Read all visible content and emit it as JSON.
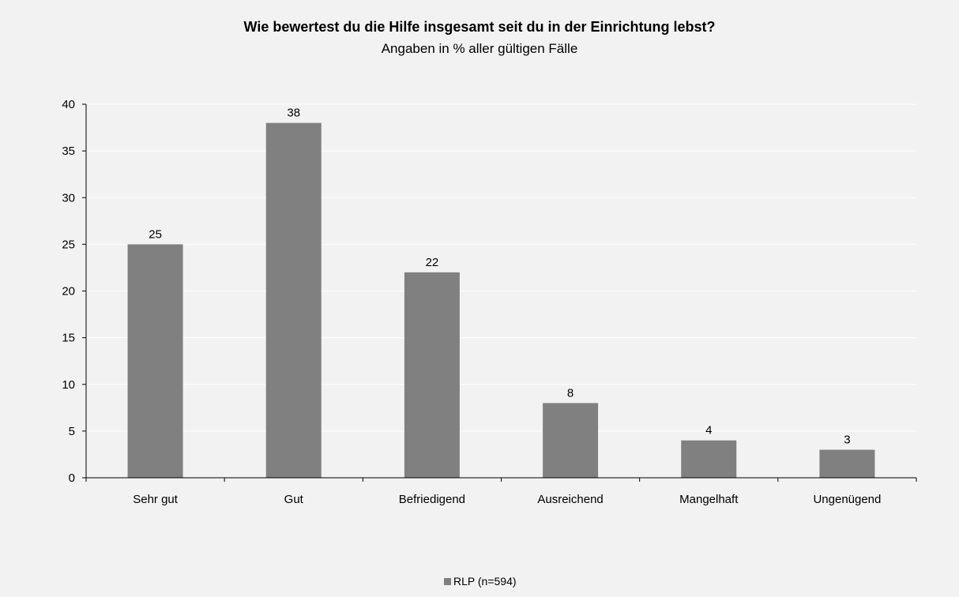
{
  "chart_data": {
    "type": "bar",
    "title": "Wie bewertest du die Hilfe insgesamt seit du in der Einrichtung lebst?",
    "subtitle": "Angaben in % aller gültigen Fälle",
    "categories": [
      "Sehr gut",
      "Gut",
      "Befriedigend",
      "Ausreichend",
      "Mangelhaft",
      "Ungenügend"
    ],
    "series": [
      {
        "name": "RLP (n=594)",
        "values": [
          25,
          38,
          22,
          8,
          4,
          3
        ],
        "color": "#808080"
      }
    ],
    "data_labels": [
      "25",
      "38",
      "22",
      "8",
      "4",
      "3"
    ],
    "ylim": [
      0,
      40
    ],
    "yticks": [
      0,
      5,
      10,
      15,
      20,
      25,
      30,
      35,
      40
    ],
    "xlabel": "",
    "ylabel": "",
    "grid": true,
    "legend_position": "bottom-center",
    "colors": {
      "background": "#f2f2f2",
      "grid": "#ffffff",
      "axis": "#000000",
      "bar": "#808080"
    }
  }
}
